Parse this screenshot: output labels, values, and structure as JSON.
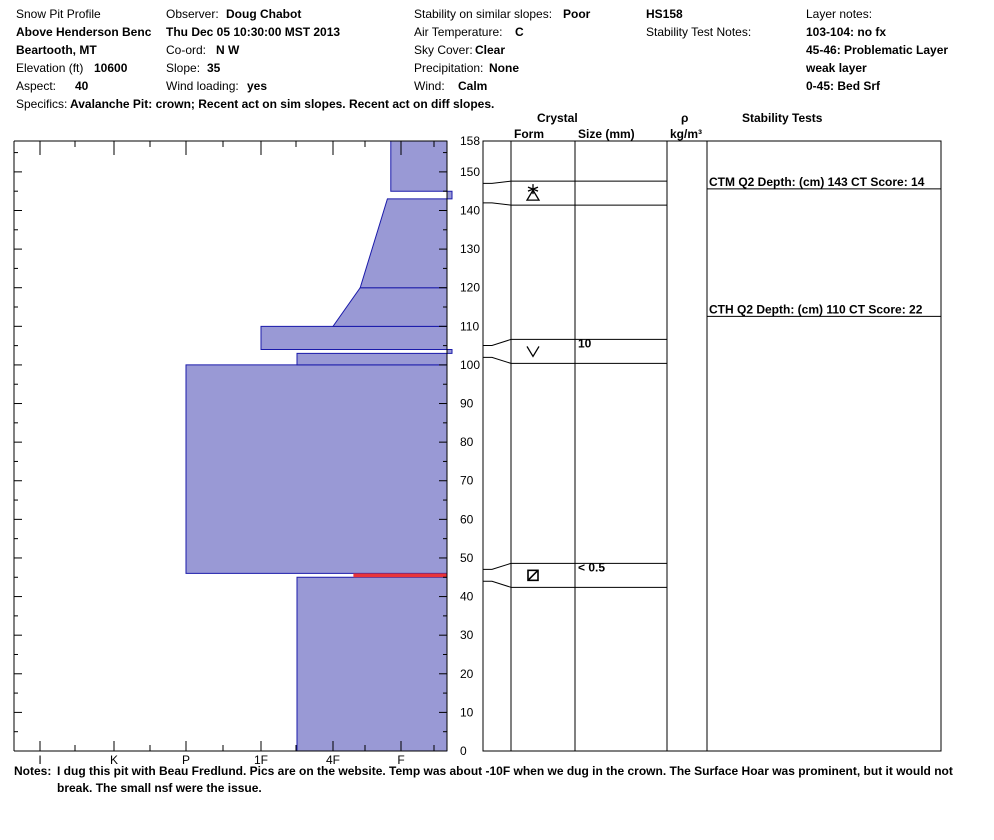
{
  "header": {
    "title": "Snow Pit Profile",
    "location": "Above Henderson Benc",
    "region": "Beartooth, MT",
    "elevation_label": "Elevation (ft)",
    "elevation_value": "10600",
    "aspect_label": "Aspect:",
    "aspect_value": "40",
    "observer_label": "Observer:",
    "observer_value": "Doug Chabot",
    "datetime": "Thu Dec 05 10:30:00 MST 2013",
    "coord_label": "Co-ord:",
    "coord_value": "N  W",
    "slope_label": "Slope:",
    "slope_value": "35",
    "wind_loading_label": "Wind loading:",
    "wind_loading_value": "yes",
    "stability_label": "Stability on similar slopes:",
    "stability_value": "Poor",
    "air_temp_label": "Air Temperature:",
    "air_temp_value": "C",
    "sky_label": "Sky Cover:",
    "sky_value": "Clear",
    "precip_label": "Precipitation:",
    "precip_value": "None",
    "wind_label": "Wind:",
    "wind_value": "Calm",
    "hs": "HS158",
    "stability_notes_label": "Stability Test Notes:",
    "layer_notes_label": "Layer notes:",
    "layer_notes": [
      "103-104: no fx",
      "45-46: Problematic Layer",
      "weak layer",
      "0-45: Bed Srf"
    ],
    "specifics_label": "Specifics:",
    "specifics_value": "Avalanche Pit: crown; Recent act on sim slopes. Recent act on diff slopes."
  },
  "columns": {
    "crystal": "Crystal",
    "form": "Form",
    "size": "Size (mm)",
    "rho": "ρ",
    "density_unit": "kg/m³",
    "stability_tests": "Stability Tests"
  },
  "notes": {
    "label": "Notes:",
    "line1": "I dug this pit with Beau Fredlund.  Pics are on the website. Temp was about -10F when we dug in the crown.  The Surface Hoar was prominent, but it would not",
    "line2": "break. The small nsf were the issue."
  },
  "chart_data": {
    "type": "hardness_profile",
    "ylim": [
      0,
      158
    ],
    "y_ticks": [
      0,
      10,
      20,
      30,
      40,
      50,
      60,
      70,
      80,
      90,
      100,
      110,
      120,
      130,
      140,
      150,
      158
    ],
    "hardness_scale": [
      "I",
      "K",
      "P",
      "1F",
      "4F",
      "F"
    ],
    "hardness_layers": [
      {
        "bottom": 0,
        "top": 45,
        "hardness_index": 3.5
      },
      {
        "bottom": 46,
        "top": 100,
        "hardness_index": 2
      },
      {
        "bottom": 100,
        "top": 103,
        "hardness_index": 3.5
      },
      {
        "bottom": 103,
        "top": 104,
        "hardness_index": 5.75
      },
      {
        "bottom": 104,
        "top": 110,
        "hardness_index": 3
      },
      {
        "bottom": 110,
        "top": 120,
        "hardness_index": 4,
        "top_hardness_index": 4.4
      },
      {
        "bottom": 120,
        "top": 143,
        "hardness_index": 4.4,
        "top_hardness_index": 4.8
      },
      {
        "bottom": 143,
        "top": 145,
        "hardness_index": 5.75
      },
      {
        "bottom": 145,
        "top": 158,
        "hardness_index": 4.85
      }
    ],
    "weak_layer": {
      "bottom": 45,
      "top": 46,
      "color": "#e8343a"
    },
    "layer_fill": "#9999d5",
    "layer_stroke": "#1a1aaa",
    "layer_boundaries": [
      45,
      46,
      100,
      103,
      104,
      110,
      143,
      145,
      158
    ],
    "crystal_rows": [
      {
        "bottom": 143,
        "top": 146,
        "form_symbol": "precipitation-particles",
        "size": ""
      },
      {
        "bottom": 103,
        "top": 104,
        "form_symbol": "depth-hoar",
        "size": "10"
      },
      {
        "bottom": 45,
        "top": 46,
        "form_symbol": "near-surface-faceted",
        "size": "< 0.5"
      }
    ],
    "stability_tests": [
      {
        "depth": 143,
        "text": "CTM Q2 Depth: (cm) 143 CT Score: 14"
      },
      {
        "depth": 110,
        "text": "CTH Q2 Depth: (cm) 110 CT Score: 22"
      }
    ]
  }
}
